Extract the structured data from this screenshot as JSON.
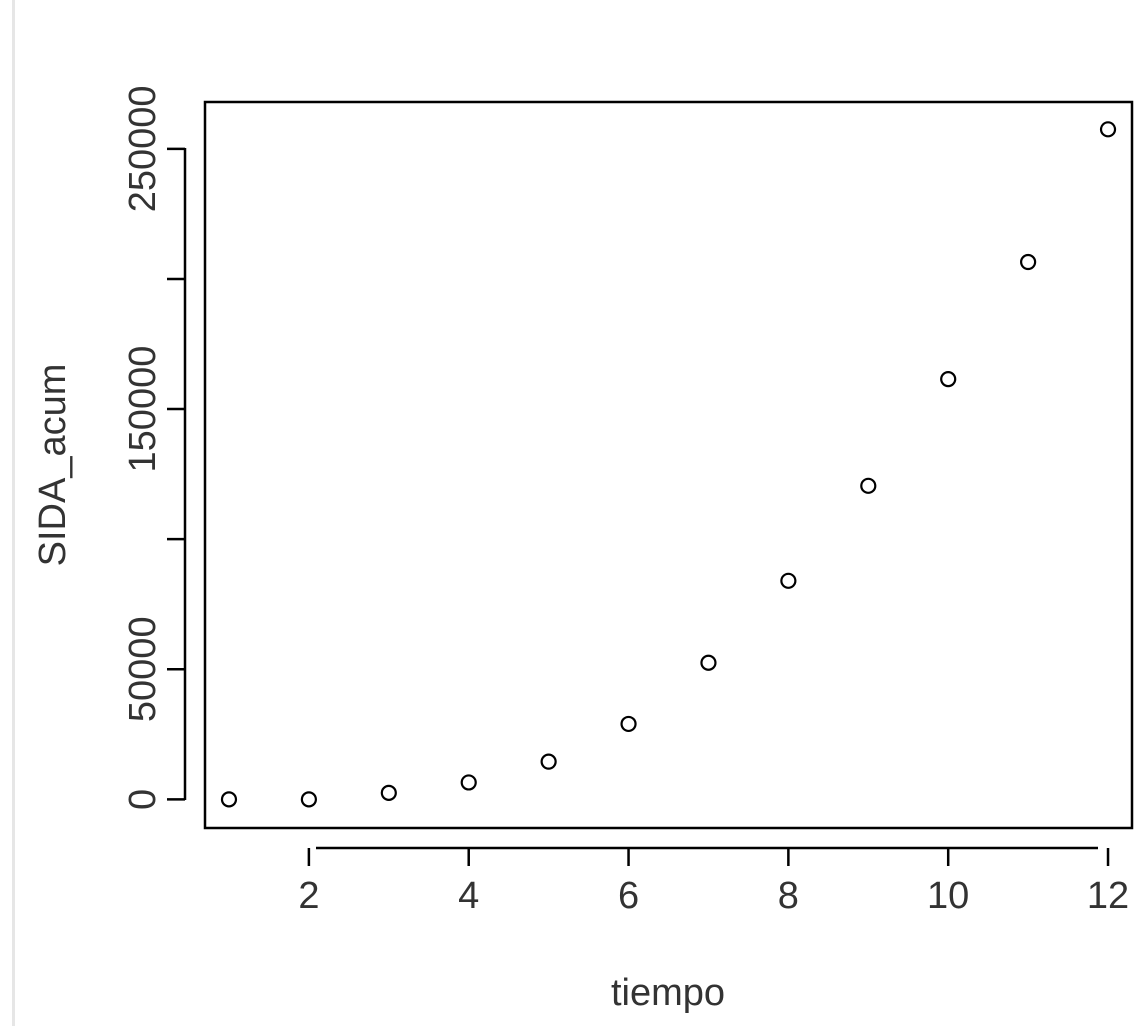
{
  "chart_data": {
    "type": "scatter",
    "title": "",
    "xlabel": "tiempo",
    "ylabel": "SIDA_acum",
    "xlim": [
      0.7,
      12.3
    ],
    "ylim": [
      -11000,
      268000
    ],
    "x_ticks": [
      2,
      4,
      6,
      8,
      10,
      12
    ],
    "x_tick_labels": [
      "2",
      "4",
      "6",
      "8",
      "10",
      "12"
    ],
    "y_ticks": [
      0,
      50000,
      100000,
      150000,
      200000,
      250000
    ],
    "y_tick_labels": [
      "0",
      "50000",
      "",
      "150000",
      "",
      "250000"
    ],
    "grid": false,
    "marker": "open-circle",
    "points": [
      {
        "x": 1,
        "y": 0
      },
      {
        "x": 2,
        "y": 0
      },
      {
        "x": 3,
        "y": 2500
      },
      {
        "x": 4,
        "y": 6500
      },
      {
        "x": 5,
        "y": 14500
      },
      {
        "x": 6,
        "y": 29000
      },
      {
        "x": 7,
        "y": 52500
      },
      {
        "x": 8,
        "y": 84000
      },
      {
        "x": 9,
        "y": 120500
      },
      {
        "x": 10,
        "y": 161500
      },
      {
        "x": 11,
        "y": 206500
      },
      {
        "x": 12,
        "y": 257500
      }
    ],
    "colors": {
      "marker": "#000000",
      "axis": "#000000",
      "text": "#333333"
    }
  }
}
